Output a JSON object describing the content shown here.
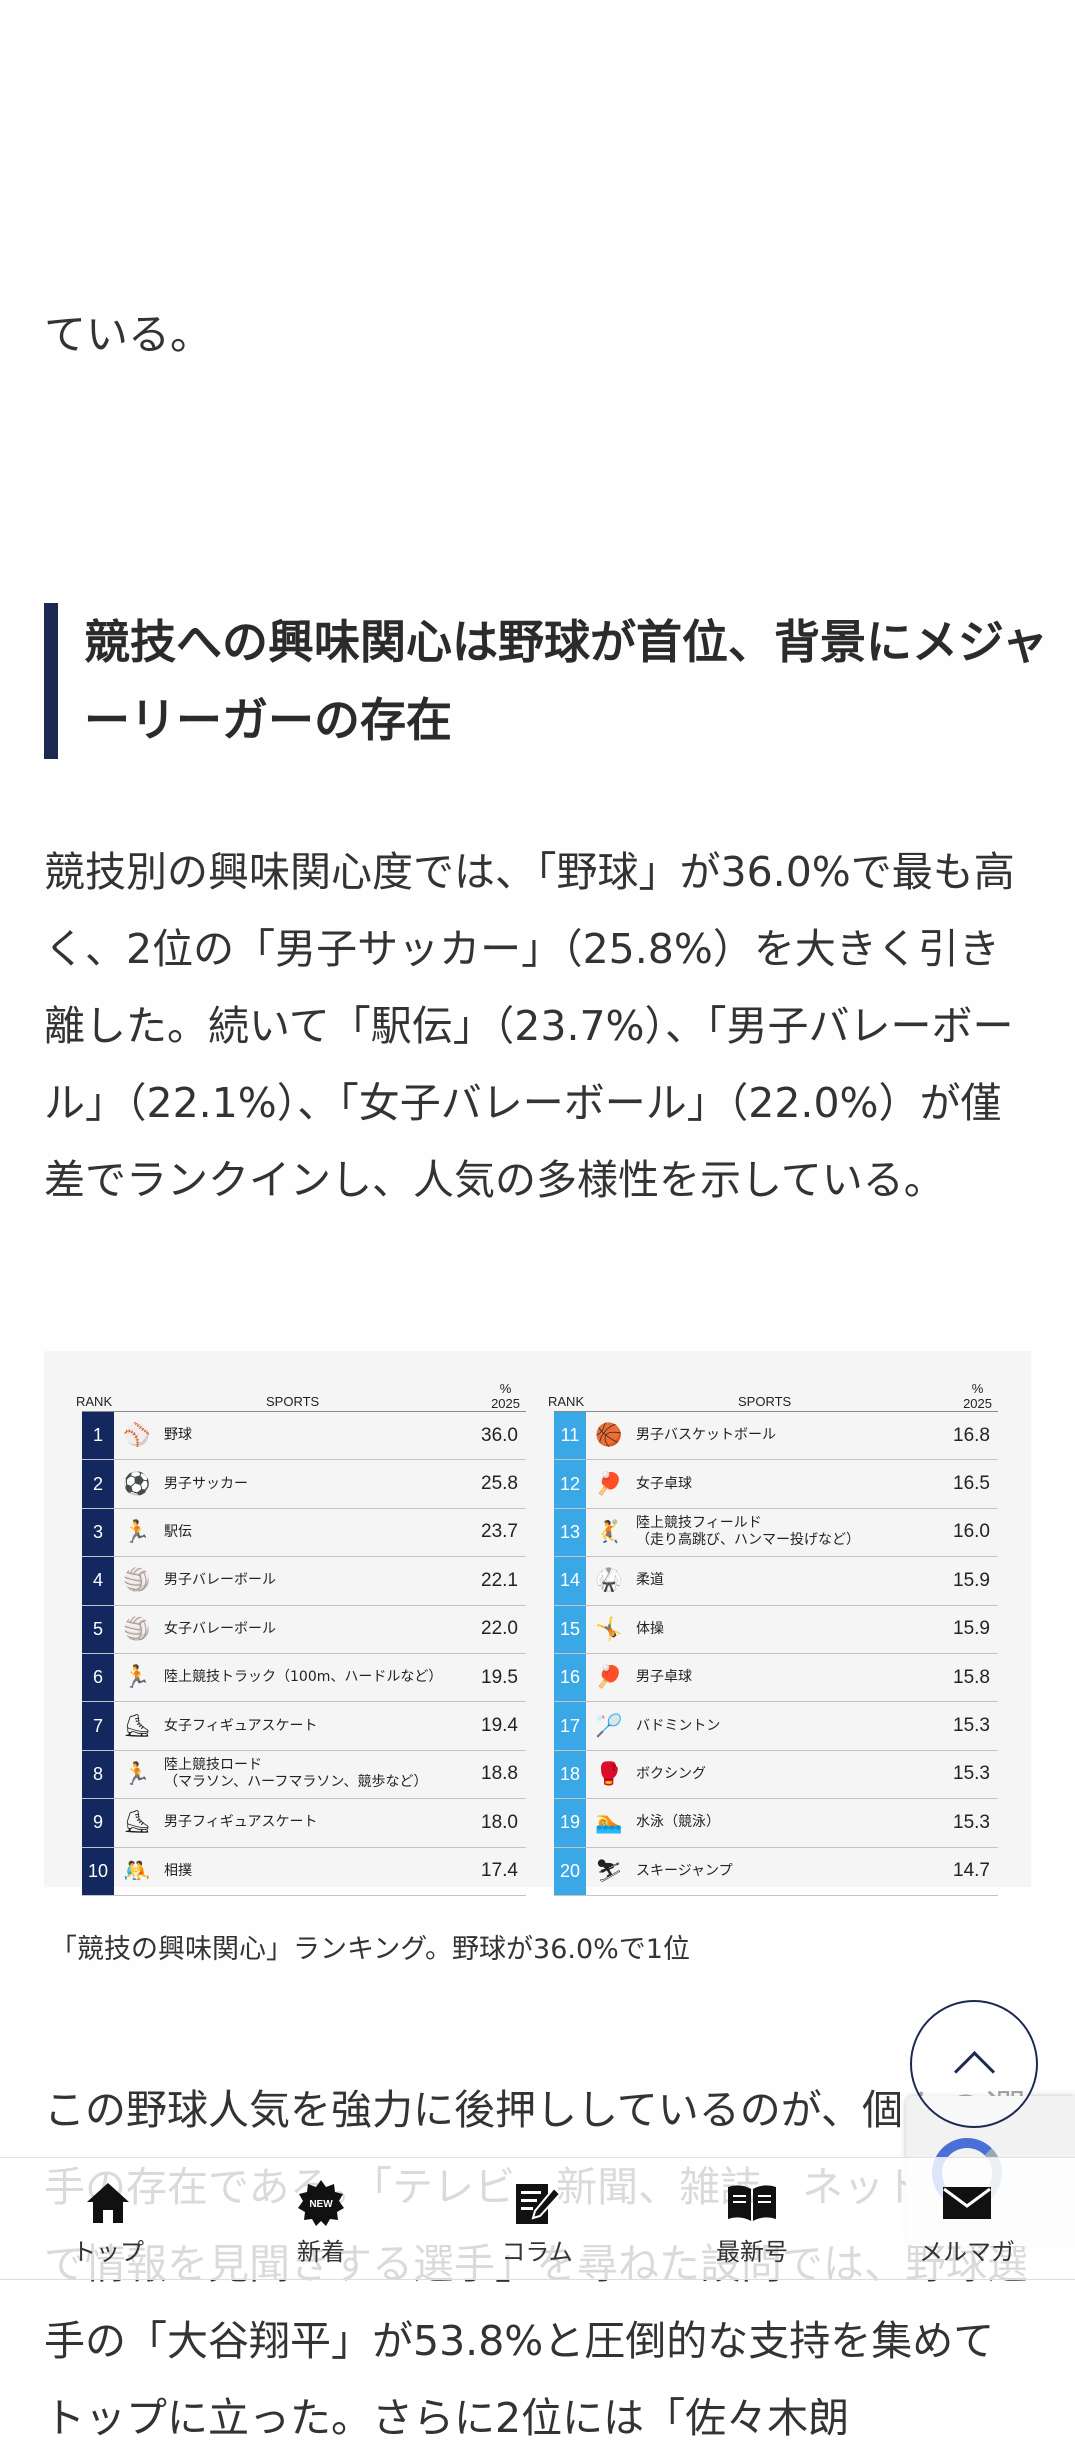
{
  "article": {
    "prev_text": "ている。",
    "heading": "競技への興味関心は野球が首位、背景にメジャーリーガーの存在",
    "paragraph1": "競技別の興味関心度では、「野球」が36.0%で最も高く、2位の「男子サッカー」（25.8%）を大きく引き離した。続いて「駅伝」（23.7%）、「男子バレーボール」（22.1%）、「女子バレーボール」（22.0%）が僅差でランクインし、人気の多様性を示している。",
    "caption": "「競技の興味関心」ランキング。野球が36.0%で1位",
    "paragraph2": "この野球人気を強力に後押ししているのが、個々の選手の存在である。「テレビ、新聞、雑誌、ネットなどで情報を見聞きする選手」を尋ねた設問では、野球選手の「大谷翔平」が53.8%と圧倒的な支持を集めてトップに立った。さらに2位には「佐々木朗"
  },
  "ranking": {
    "header": {
      "rank": "RANK",
      "sports": "SPORTS",
      "pct": "%",
      "year": "2025"
    },
    "colors": {
      "left_rank_bg": "#12285f",
      "right_rank_bg": "#3aa8e6"
    },
    "left": [
      {
        "rank": "1",
        "icon": "baseball-icon",
        "glyph": "⚾",
        "name": "野球",
        "sub": "",
        "value": "36.0"
      },
      {
        "rank": "2",
        "icon": "soccer-icon",
        "glyph": "⚽",
        "name": "男子サッカー",
        "sub": "",
        "value": "25.8"
      },
      {
        "rank": "3",
        "icon": "ekiden-icon",
        "glyph": "🏃",
        "name": "駅伝",
        "sub": "",
        "value": "23.7"
      },
      {
        "rank": "4",
        "icon": "volleyball-icon",
        "glyph": "🏐",
        "name": "男子バレーボール",
        "sub": "",
        "value": "22.1"
      },
      {
        "rank": "5",
        "icon": "volleyball-icon",
        "glyph": "🏐",
        "name": "女子バレーボール",
        "sub": "",
        "value": "22.0"
      },
      {
        "rank": "6",
        "icon": "track-icon",
        "glyph": "🏃",
        "name": "陸上競技トラック（100m、ハードルなど）",
        "sub": "",
        "value": "19.5"
      },
      {
        "rank": "7",
        "icon": "figure-skating-icon",
        "glyph": "⛸",
        "name": "女子フィギュアスケート",
        "sub": "",
        "value": "19.4"
      },
      {
        "rank": "8",
        "icon": "road-race-icon",
        "glyph": "🏃",
        "name": "陸上競技ロード",
        "sub": "（マラソン、ハーフマラソン、競歩など）",
        "value": "18.8"
      },
      {
        "rank": "9",
        "icon": "figure-skating-icon",
        "glyph": "⛸",
        "name": "男子フィギュアスケート",
        "sub": "",
        "value": "18.0"
      },
      {
        "rank": "10",
        "icon": "sumo-icon",
        "glyph": "🤼",
        "name": "相撲",
        "sub": "",
        "value": "17.4"
      }
    ],
    "right": [
      {
        "rank": "11",
        "icon": "basketball-icon",
        "glyph": "🏀",
        "name": "男子バスケットボール",
        "sub": "",
        "value": "16.8"
      },
      {
        "rank": "12",
        "icon": "table-tennis-icon",
        "glyph": "🏓",
        "name": "女子卓球",
        "sub": "",
        "value": "16.5"
      },
      {
        "rank": "13",
        "icon": "field-icon",
        "glyph": "🤾",
        "name": "陸上競技フィールド",
        "sub": "（走り高跳び、ハンマー投げなど）",
        "value": "16.0"
      },
      {
        "rank": "14",
        "icon": "judo-icon",
        "glyph": "🥋",
        "name": "柔道",
        "sub": "",
        "value": "15.9"
      },
      {
        "rank": "15",
        "icon": "gymnastics-icon",
        "glyph": "🤸",
        "name": "体操",
        "sub": "",
        "value": "15.9"
      },
      {
        "rank": "16",
        "icon": "table-tennis-icon",
        "glyph": "🏓",
        "name": "男子卓球",
        "sub": "",
        "value": "15.8"
      },
      {
        "rank": "17",
        "icon": "badminton-icon",
        "glyph": "🏸",
        "name": "バドミントン",
        "sub": "",
        "value": "15.3"
      },
      {
        "rank": "18",
        "icon": "boxing-icon",
        "glyph": "🥊",
        "name": "ボクシング",
        "sub": "",
        "value": "15.3"
      },
      {
        "rank": "19",
        "icon": "swimming-icon",
        "glyph": "🏊",
        "name": "水泳（競泳）",
        "sub": "",
        "value": "15.3"
      },
      {
        "rank": "20",
        "icon": "ski-jump-icon",
        "glyph": "⛷",
        "name": "スキージャンプ",
        "sub": "",
        "value": "14.7"
      }
    ]
  },
  "bottom_nav": {
    "items": [
      {
        "label": "トップ",
        "icon": "home-icon"
      },
      {
        "label": "新着",
        "icon": "new-badge-icon"
      },
      {
        "label": "コラム",
        "icon": "column-edit-icon"
      },
      {
        "label": "最新号",
        "icon": "open-book-icon"
      },
      {
        "label": "メルマガ",
        "icon": "mail-icon"
      }
    ]
  },
  "scroll_top": {
    "icon": "chevron-up-icon"
  },
  "recaptcha": {
    "icon": "recaptcha-logo-icon"
  }
}
